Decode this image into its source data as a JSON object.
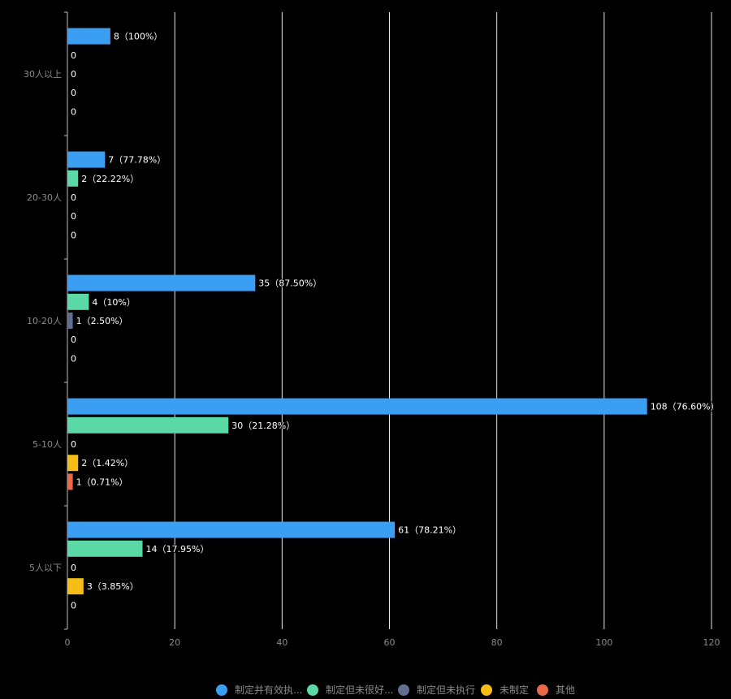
{
  "chart_data": {
    "type": "bar",
    "orientation": "horizontal",
    "categories": [
      "30人以上",
      "20-30人",
      "10-20人",
      "5-10人",
      "5人以下"
    ],
    "xlim": [
      0,
      120
    ],
    "x_ticks": [
      "0",
      "20",
      "40",
      "60",
      "80",
      "100",
      "120"
    ],
    "grid": "vertical",
    "legend_position": "bottom",
    "series": [
      {
        "name": "制定并有效执...",
        "color": "#3a9ef2",
        "values": [
          8,
          7,
          35,
          108,
          61
        ],
        "labels": [
          "8（100%）",
          "7（77.78%）",
          "35（87.50%）",
          "108（76.60%）",
          "61（78.21%）"
        ]
      },
      {
        "name": "制定但未很好...",
        "color": "#5ad8a6",
        "values": [
          0,
          2,
          4,
          30,
          14
        ],
        "labels": [
          "0",
          "2（22.22%）",
          "4（10%）",
          "30（21.28%）",
          "14（17.95%）"
        ]
      },
      {
        "name": "制定但未执行",
        "color": "#5d7092",
        "values": [
          0,
          0,
          1,
          0,
          0
        ],
        "labels": [
          "0",
          "0",
          "1（2.50%）",
          "0",
          "0"
        ]
      },
      {
        "name": "未制定",
        "color": "#f6bd16",
        "values": [
          0,
          0,
          0,
          2,
          3
        ],
        "labels": [
          "0",
          "0",
          "0",
          "2（1.42%）",
          "3（3.85%）"
        ]
      },
      {
        "name": "其他",
        "color": "#e8684a",
        "values": [
          0,
          0,
          0,
          1,
          0
        ],
        "labels": [
          "0",
          "0",
          "0",
          "1（0.71%）",
          "0"
        ]
      }
    ]
  }
}
